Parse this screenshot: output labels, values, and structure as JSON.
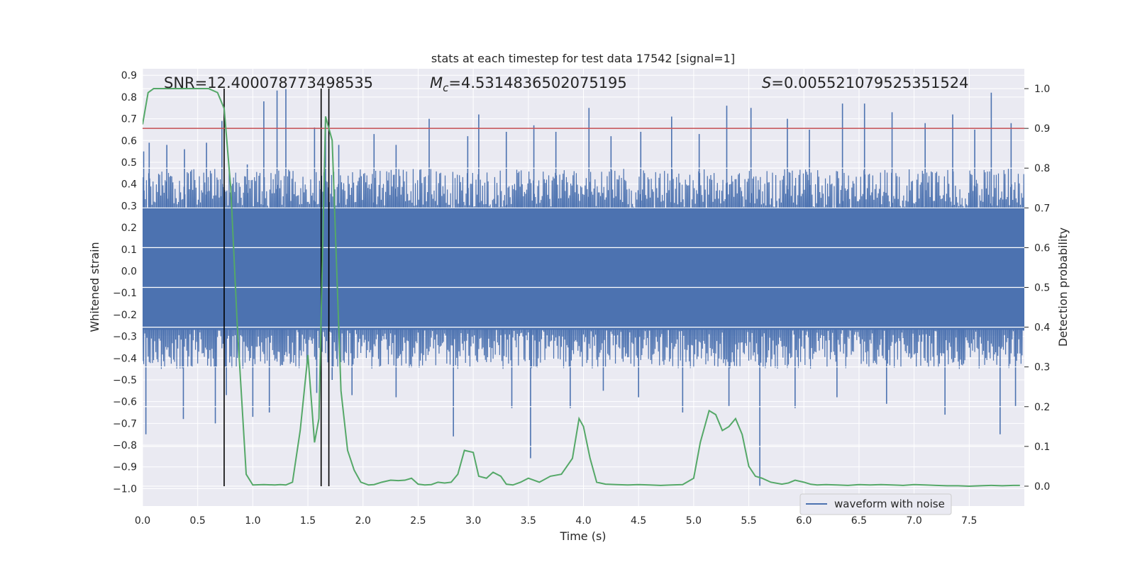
{
  "chart_data": {
    "type": "line",
    "title": "stats at each timestep for test data 17542 [signal=1]",
    "xlabel": "Time (s)",
    "ylabel": "Whitened strain",
    "ylabel_right": "Detection probability",
    "xlim": [
      0.0,
      8.0
    ],
    "ylim": [
      -1.08,
      0.93
    ],
    "ylim_right": [
      -0.05,
      1.05
    ],
    "x_ticks": [
      "0.0",
      "0.5",
      "1.0",
      "1.5",
      "2.0",
      "2.5",
      "3.0",
      "3.5",
      "4.0",
      "4.5",
      "5.0",
      "5.5",
      "6.0",
      "6.5",
      "7.0",
      "7.5"
    ],
    "y_ticks": [
      "0.9",
      "0.8",
      "0.7",
      "0.6",
      "0.5",
      "0.4",
      "0.3",
      "0.2",
      "0.1",
      "0.0",
      "−0.1",
      "−0.2",
      "−0.3",
      "−0.4",
      "−0.5",
      "−0.6",
      "−0.7",
      "−0.8",
      "−0.9",
      "−1.0"
    ],
    "y_ticks_right": [
      "0.0",
      "0.1",
      "0.2",
      "0.3",
      "0.4",
      "0.5",
      "0.6",
      "0.7",
      "0.8",
      "0.9",
      "1.0"
    ],
    "grid": true,
    "legend": {
      "position": "lower-right",
      "entries": [
        "waveform with noise"
      ]
    },
    "annotations": {
      "snr": "SNR=12.400078773498535",
      "mc_prefix": "M",
      "mc_sub": "c",
      "mc_value": "=4.5314836502075195",
      "s_prefix": "S",
      "s_value": "=0.005521079525351524"
    },
    "colors": {
      "waveform": "#4c72b0",
      "probability": "#55a868",
      "threshold": "#c44e52",
      "marker": "#000000",
      "plot_bg": "#eaeaf2",
      "grid": "#ffffff"
    },
    "waveform_envelope": {
      "dense_band_y": [
        -0.27,
        0.29
      ],
      "spike_range_y": [
        -1.0,
        0.83
      ]
    },
    "threshold_probability": 0.9,
    "vertical_markers_x": [
      0.74,
      1.62,
      1.69
    ],
    "series": [
      {
        "name": "waveform with noise",
        "axis": "left",
        "style": "line",
        "x_range": [
          0.0,
          8.0
        ],
        "spike_peaks_up": [
          [
            0.01,
            0.55
          ],
          [
            0.06,
            0.59
          ],
          [
            0.22,
            0.58
          ],
          [
            0.38,
            0.56
          ],
          [
            0.58,
            0.59
          ],
          [
            0.72,
            0.69
          ],
          [
            0.95,
            0.49
          ],
          [
            1.1,
            0.78
          ],
          [
            1.22,
            0.83
          ],
          [
            1.3,
            0.84
          ],
          [
            1.56,
            0.66
          ],
          [
            1.66,
            0.69
          ],
          [
            1.78,
            0.58
          ],
          [
            2.1,
            0.63
          ],
          [
            2.3,
            0.58
          ],
          [
            2.6,
            0.7
          ],
          [
            2.95,
            0.62
          ],
          [
            3.05,
            0.72
          ],
          [
            3.3,
            0.64
          ],
          [
            3.55,
            0.67
          ],
          [
            3.75,
            0.64
          ],
          [
            4.05,
            0.75
          ],
          [
            4.25,
            0.62
          ],
          [
            4.52,
            0.64
          ],
          [
            4.8,
            0.71
          ],
          [
            5.05,
            0.63
          ],
          [
            5.3,
            0.76
          ],
          [
            5.52,
            0.75
          ],
          [
            5.85,
            0.7
          ],
          [
            6.05,
            0.65
          ],
          [
            6.35,
            0.77
          ],
          [
            6.55,
            0.77
          ],
          [
            6.8,
            0.73
          ],
          [
            7.1,
            0.68
          ],
          [
            7.35,
            0.72
          ],
          [
            7.55,
            0.65
          ],
          [
            7.7,
            0.82
          ],
          [
            7.88,
            0.68
          ]
        ],
        "spike_peaks_down": [
          [
            0.03,
            -0.75
          ],
          [
            0.37,
            -0.68
          ],
          [
            0.66,
            -0.7
          ],
          [
            0.76,
            -0.57
          ],
          [
            1.0,
            -0.67
          ],
          [
            1.15,
            -0.65
          ],
          [
            1.42,
            -0.4
          ],
          [
            1.58,
            -0.56
          ],
          [
            1.72,
            -0.5
          ],
          [
            1.9,
            -0.57
          ],
          [
            2.3,
            -0.58
          ],
          [
            2.82,
            -0.76
          ],
          [
            3.35,
            -0.63
          ],
          [
            3.52,
            -0.86
          ],
          [
            3.88,
            -0.63
          ],
          [
            4.18,
            -0.55
          ],
          [
            4.5,
            -0.58
          ],
          [
            4.9,
            -0.65
          ],
          [
            5.32,
            -0.62
          ],
          [
            5.6,
            -0.99
          ],
          [
            5.92,
            -0.63
          ],
          [
            6.3,
            -0.58
          ],
          [
            6.75,
            -0.61
          ],
          [
            7.28,
            -0.66
          ],
          [
            7.78,
            -0.75
          ],
          [
            7.92,
            -0.62
          ]
        ]
      },
      {
        "name": "",
        "axis": "right",
        "style": "line",
        "x": [
          0.0,
          0.05,
          0.1,
          0.2,
          0.3,
          0.4,
          0.5,
          0.6,
          0.68,
          0.74,
          0.8,
          0.86,
          0.94,
          1.0,
          1.1,
          1.2,
          1.25,
          1.3,
          1.36,
          1.43,
          1.5,
          1.56,
          1.6,
          1.66,
          1.72,
          1.8,
          1.86,
          1.92,
          1.98,
          2.05,
          2.1,
          2.17,
          2.25,
          2.32,
          2.38,
          2.44,
          2.5,
          2.56,
          2.62,
          2.68,
          2.74,
          2.8,
          2.86,
          2.92,
          3.0,
          3.05,
          3.12,
          3.18,
          3.25,
          3.3,
          3.36,
          3.43,
          3.5,
          3.6,
          3.7,
          3.8,
          3.9,
          3.96,
          4.0,
          4.06,
          4.12,
          4.2,
          4.3,
          4.4,
          4.5,
          4.6,
          4.7,
          4.8,
          4.9,
          5.0,
          5.06,
          5.14,
          5.2,
          5.26,
          5.32,
          5.38,
          5.44,
          5.5,
          5.56,
          5.62,
          5.7,
          5.8,
          5.86,
          5.92,
          6.0,
          6.06,
          6.12,
          6.2,
          6.3,
          6.4,
          6.5,
          6.6,
          6.7,
          6.8,
          6.9,
          7.0,
          7.1,
          7.2,
          7.3,
          7.4,
          7.5,
          7.6,
          7.7,
          7.8,
          7.9,
          7.96
        ],
        "y": [
          0.91,
          0.99,
          1.0,
          1.0,
          1.0,
          1.0,
          1.0,
          1.0,
          0.99,
          0.95,
          0.75,
          0.4,
          0.03,
          0.003,
          0.004,
          0.003,
          0.004,
          0.003,
          0.01,
          0.14,
          0.33,
          0.11,
          0.17,
          0.93,
          0.87,
          0.24,
          0.09,
          0.04,
          0.01,
          0.003,
          0.004,
          0.01,
          0.015,
          0.014,
          0.015,
          0.02,
          0.005,
          0.003,
          0.004,
          0.01,
          0.008,
          0.01,
          0.03,
          0.09,
          0.085,
          0.025,
          0.02,
          0.035,
          0.025,
          0.005,
          0.003,
          0.01,
          0.02,
          0.01,
          0.025,
          0.03,
          0.07,
          0.17,
          0.15,
          0.07,
          0.01,
          0.005,
          0.004,
          0.003,
          0.004,
          0.003,
          0.002,
          0.003,
          0.004,
          0.02,
          0.11,
          0.19,
          0.18,
          0.14,
          0.15,
          0.17,
          0.13,
          0.05,
          0.025,
          0.02,
          0.01,
          0.005,
          0.008,
          0.015,
          0.01,
          0.005,
          0.003,
          0.004,
          0.003,
          0.002,
          0.004,
          0.003,
          0.004,
          0.003,
          0.002,
          0.004,
          0.003,
          0.002,
          0.001,
          0.001,
          0.0,
          0.001,
          0.002,
          0.001,
          0.002,
          0.002
        ]
      }
    ]
  }
}
